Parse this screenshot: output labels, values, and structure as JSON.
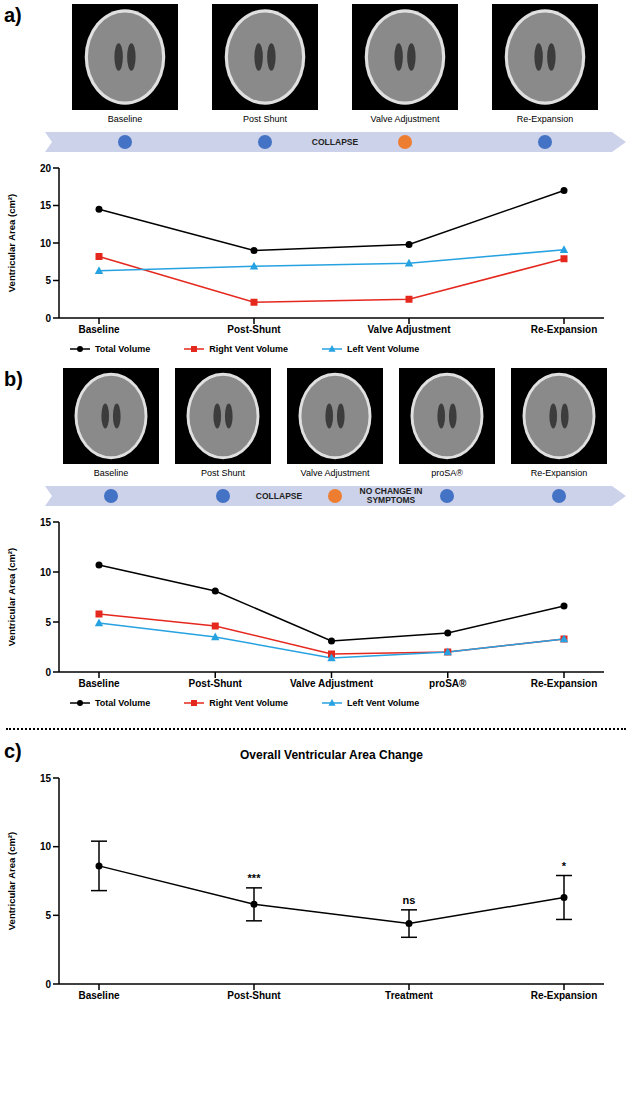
{
  "figure": {
    "panels": [
      {
        "label": "a)",
        "image_captions": [
          "Baseline",
          "Post Shunt",
          "Valve Adjustment",
          "Re-Expansion"
        ],
        "timeline": [
          {
            "marker": "#4472c4"
          },
          {
            "marker": "#4472c4"
          },
          {
            "text": "COLLAPSE"
          },
          {
            "marker": "#ed7d31"
          },
          {
            "marker": "#4472c4"
          }
        ]
      },
      {
        "label": "b)",
        "image_captions": [
          "Baseline",
          "Post Shunt",
          "Valve Adjustment",
          "proSA®",
          "Re-Expansion"
        ],
        "timeline": [
          {
            "marker": "#4472c4"
          },
          {
            "marker": "#4472c4"
          },
          {
            "text": "COLLAPSE"
          },
          {
            "marker": "#ed7d31"
          },
          {
            "text": "NO CHANGE IN SYMPTOMS"
          },
          {
            "marker": "#4472c4"
          },
          {
            "marker": "#4472c4"
          }
        ]
      },
      {
        "label": "c)"
      }
    ]
  },
  "chart_data": [
    {
      "type": "line",
      "y_label": "Ventricular Area (cm²)",
      "categories": [
        "Baseline",
        "Post-Shunt",
        "Valve Adjustment",
        "Re-Expansion"
      ],
      "series": [
        {
          "name": "Total Volume",
          "color": "#000000",
          "marker": "circle",
          "values": [
            14.5,
            9.0,
            9.8,
            17.0
          ]
        },
        {
          "name": "Right Vent Volume",
          "color": "#e5281e",
          "marker": "square",
          "values": [
            8.2,
            2.1,
            2.5,
            7.9
          ]
        },
        {
          "name": "Left Vent Volume",
          "color": "#26a2e0",
          "marker": "triangle",
          "values": [
            6.3,
            6.9,
            7.3,
            9.1
          ]
        }
      ],
      "ylim": [
        0,
        20
      ],
      "yticks": [
        0,
        5,
        10,
        15,
        20
      ],
      "legend": "bottom"
    },
    {
      "type": "line",
      "y_label": "Ventricular Area (cm²)",
      "categories": [
        "Baseline",
        "Post-Shunt",
        "Valve Adjustment",
        "proSA®",
        "Re-Expansion"
      ],
      "series": [
        {
          "name": "Total Volume",
          "color": "#000000",
          "marker": "circle",
          "values": [
            10.7,
            8.1,
            3.1,
            3.9,
            6.6
          ]
        },
        {
          "name": "Right Vent Volume",
          "color": "#e5281e",
          "marker": "square",
          "values": [
            5.8,
            4.6,
            1.8,
            2.0,
            3.3
          ]
        },
        {
          "name": "Left Vent Volume",
          "color": "#26a2e0",
          "marker": "triangle",
          "values": [
            4.9,
            3.5,
            1.4,
            2.0,
            3.3
          ]
        }
      ],
      "ylim": [
        0,
        15
      ],
      "yticks": [
        0,
        5,
        10,
        15
      ],
      "legend": "bottom"
    },
    {
      "type": "line",
      "title": "Overall Ventricular Area Change",
      "y_label": "Ventricular Area (cm²)",
      "categories": [
        "Baseline",
        "Post-Shunt",
        "Treatment",
        "Re-Expansion"
      ],
      "values": [
        8.6,
        5.8,
        4.4,
        6.3
      ],
      "errors": [
        1.8,
        1.2,
        1.0,
        1.6
      ],
      "color": "#000000",
      "marker": "circle",
      "annotations": [
        {
          "category": "Post-Shunt",
          "text": "***"
        },
        {
          "category": "Treatment",
          "text": "ns"
        },
        {
          "category": "Re-Expansion",
          "text": "*"
        }
      ],
      "ylim": [
        0,
        15
      ],
      "yticks": [
        0,
        5,
        10,
        15
      ]
    }
  ]
}
